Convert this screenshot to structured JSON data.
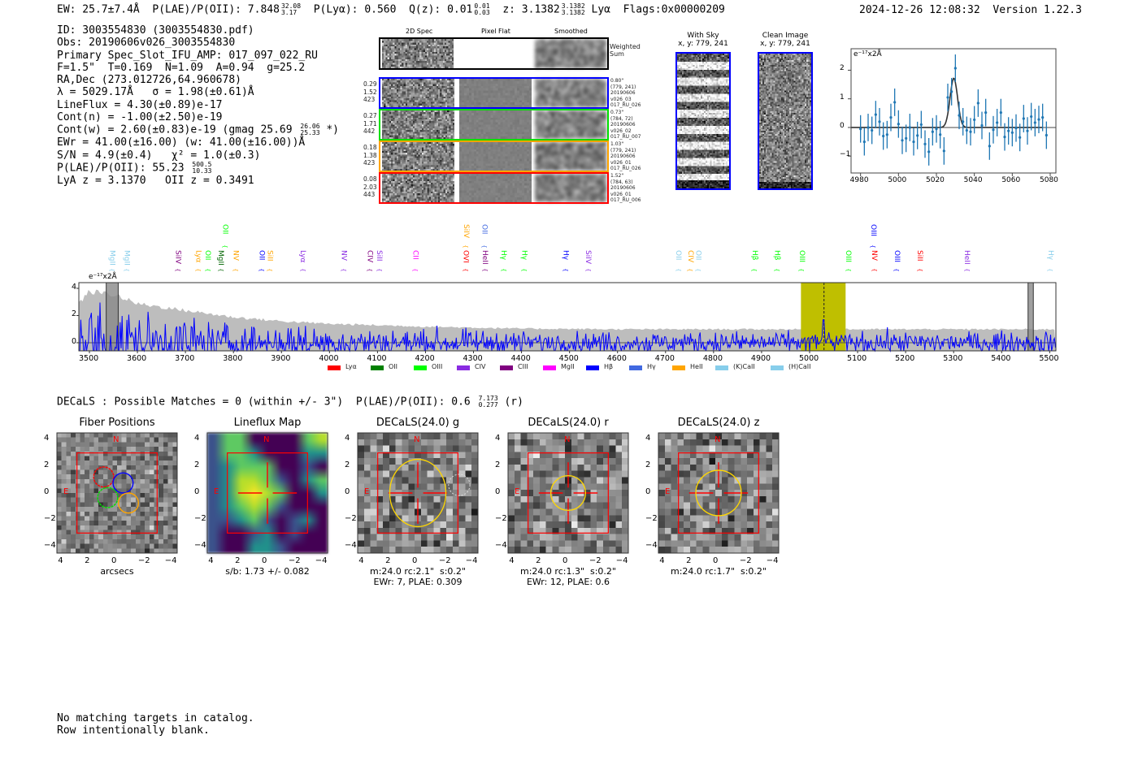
{
  "header": {
    "ew": "EW: 25.7±7.4Å",
    "plae_label": "P(LAE)/P(OII): 7.848",
    "plae_hi": "32.08",
    "plae_lo": "3.17",
    "plya": "P(Lyα): 0.560",
    "qz_label": "Q(z): 0.01",
    "qz_hi": "0.01",
    "qz_lo": "0.03",
    "z_label": "z: 3.1382",
    "z_hi": "3.1382",
    "z_lo": "3.1382",
    "line": "Lyα",
    "flags": "Flags:0x00000209",
    "timestamp": "2024-12-26 12:08:32",
    "version": "Version 1.22.3"
  },
  "info": {
    "id": "ID: 3003554830 (3003554830.pdf)",
    "obs": "Obs: 20190606v026_3003554830",
    "primary": "Primary Spec_Slot_IFU_AMP: 017_097_022_RU",
    "params": "F=1.5\"  T=0.169  N=1.09  A=0.94  g=25.2",
    "radec": "RA,Dec (273.012726,64.960678)",
    "lambda": "λ = 5029.17Å   σ = 1.98(±0.61)Å",
    "lineflux": "LineFlux = 4.30(±0.89)e-17",
    "cont_n": "Cont(n) = -1.00(±2.50)e-19",
    "cont_w": "Cont(w) = 2.60(±0.83)e-19 (gmag 25.69",
    "gmag_hi": "26.06",
    "gmag_lo": "25.33",
    "cont_w_end": " *)",
    "ewr": "EWr = 41.00(±16.00) (w: 41.00(±16.00))Å",
    "sn": "S/N = 4.9(±0.4)   χ² = 1.0(±0.3)",
    "plae": "P(LAE)/P(OII): 55.23",
    "plae_hi": "500.5",
    "plae_lo": "10.33",
    "z": "LyA z = 3.1370   OII z = 0.3491"
  },
  "spec2d": {
    "col_headers": [
      "2D Spec",
      "Pixel Flat",
      "Smoothed"
    ],
    "weighted_sum": "Weighted\nSum",
    "fibers": [
      {
        "left": "0.29\n1.52\n423",
        "right": "0.80\"\n(779, 241)\n20190606\nv026_03\n017_RU_026",
        "color": "#0000ff"
      },
      {
        "left": "0.27\n1.71\n442",
        "right": "0.73\"\n(784, 72)\n20190606\nv026_02\n017_RU_007",
        "color": "#00e000"
      },
      {
        "left": "0.18\n1.38\n423",
        "right": "1.03\"\n(779, 241)\n20190606\nv026_01\n017_RU_026",
        "color": "#ffa500"
      },
      {
        "left": "0.08\n2.03\n443",
        "right": "1.52\"\n(784, 63)\n20190606\nv026_01\n017_RU_006",
        "color": "#ff0000"
      }
    ]
  },
  "ccd": {
    "with_sky": "With Sky\nx, y: 779, 241",
    "clean": "Clean Image\nx, y: 779, 241"
  },
  "chart_data": [
    {
      "type": "scatter",
      "title": "emission line fit",
      "unit_label": "e⁻¹⁷x2Å",
      "xlim": [
        4975,
        5083
      ],
      "ylim": [
        -1.59,
        2.75
      ],
      "xticks": [
        "4980",
        "5000",
        "5020",
        "5040",
        "5060",
        "5080"
      ],
      "yticks": [
        "2",
        "1",
        "0",
        "−1"
      ],
      "x": [
        4980,
        4982,
        4984,
        4986,
        4988,
        4990,
        4992,
        4994,
        4996,
        4998,
        5000,
        5002,
        5004,
        5006,
        5008,
        5010,
        5012,
        5014,
        5016,
        5018,
        5020,
        5022,
        5024,
        5026,
        5028,
        5030,
        5032,
        5034,
        5036,
        5038,
        5040,
        5042,
        5044,
        5046,
        5048,
        5050,
        5052,
        5054,
        5056,
        5058,
        5060,
        5062,
        5064,
        5066,
        5068,
        5070,
        5072,
        5074,
        5076,
        5078
      ],
      "y": [
        -0.05,
        -0.5,
        0,
        -0.1,
        0.45,
        0.2,
        -0.3,
        -0.25,
        0.35,
        0.88,
        0.12,
        -0.45,
        -0.38,
        0,
        -0.5,
        -0.28,
        0.1,
        -0.58,
        -0.85,
        -0.15,
        -0.05,
        -0.25,
        -0.82,
        1.05,
        1.25,
        2.07,
        0.42,
        0.2,
        -0.1,
        -0.15,
        0.27,
        0.85,
        0.07,
        0.52,
        -0.65,
        -0.08,
        0.17,
        0.52,
        -0.33,
        -0.12,
        -0.18,
        -0.02,
        -0.35,
        0.31,
        -0.12,
        0.38,
        0.17,
        0.28,
        0.35,
        -0.27
      ],
      "yerr": 0.48,
      "fit": {
        "center": 5029.17,
        "sigma": 1.98,
        "amplitude": 1.72
      },
      "colors": {
        "points": "#1f77b4",
        "fit": "#333333"
      }
    },
    {
      "type": "line",
      "title": "full spectrum",
      "unit_label": "e⁻¹⁷x2Å",
      "xlim": [
        3478,
        5513
      ],
      "ylim": [
        -0.6,
        4.42
      ],
      "xticks": [
        "3500",
        "3600",
        "3700",
        "3800",
        "3900",
        "4000",
        "4100",
        "4200",
        "4300",
        "4400",
        "4500",
        "4600",
        "4700",
        "4800",
        "4900",
        "5000",
        "5100",
        "5200",
        "5300",
        "5400",
        "5500"
      ],
      "yticks": [
        "4",
        "2",
        "0"
      ],
      "error_envelope": [
        [
          3480,
          3.0
        ],
        [
          3500,
          3.8
        ],
        [
          3550,
          3.6
        ],
        [
          3600,
          2.9
        ],
        [
          3700,
          2.4
        ],
        [
          3800,
          1.9
        ],
        [
          3900,
          1.6
        ],
        [
          4000,
          1.4
        ],
        [
          4200,
          1.2
        ],
        [
          4400,
          1.05
        ],
        [
          4600,
          1.0
        ],
        [
          4800,
          1.0
        ],
        [
          5000,
          1.0
        ],
        [
          5500,
          1.0
        ]
      ],
      "emission_peak": {
        "x": 5029,
        "y": 2.1
      },
      "highlight_band": [
        4982,
        5075
      ],
      "marker": 5030,
      "masked": [
        [
          3535,
          3560
        ],
        [
          5455,
          5466
        ]
      ],
      "series_color": "#0000ff",
      "line_labels": [
        {
          "t": "MgII",
          "x": 3546,
          "c": "#87ceeb",
          "r": 0
        },
        {
          "t": "MgII",
          "x": 3576,
          "c": "#87ceeb",
          "r": 0
        },
        {
          "t": "SiIV",
          "x": 3683,
          "c": "#800080",
          "r": 0
        },
        {
          "t": "Lyα",
          "x": 3725,
          "c": "#ffa500",
          "r": 0
        },
        {
          "t": "OII",
          "x": 3745,
          "c": "#00ff00",
          "r": 0
        },
        {
          "t": "MgII",
          "x": 3772,
          "c": "#006400",
          "r": 0
        },
        {
          "t": "OII",
          "x": 3781,
          "c": "#00ff00",
          "r": 1
        },
        {
          "t": "NV",
          "x": 3803,
          "c": "#ffa500",
          "r": 0
        },
        {
          "t": "OII",
          "x": 3857,
          "c": "#0000ff",
          "r": 0
        },
        {
          "t": "SiII",
          "x": 3874,
          "c": "#ffa500",
          "r": 0
        },
        {
          "t": "Lyα",
          "x": 3943,
          "c": "#8a2be2",
          "r": 0
        },
        {
          "t": "NV",
          "x": 4028,
          "c": "#8a2be2",
          "r": 0
        },
        {
          "t": "CIV",
          "x": 4082,
          "c": "#800080",
          "r": 0
        },
        {
          "t": "SiII",
          "x": 4102,
          "c": "#8a2be2",
          "r": 0
        },
        {
          "t": "CII",
          "x": 4177,
          "c": "#ff00ff",
          "r": 0
        },
        {
          "t": "OVI",
          "x": 4282,
          "c": "#ff0000",
          "r": 0
        },
        {
          "t": "SiIV",
          "x": 4283,
          "c": "#ffa500",
          "r": 1
        },
        {
          "t": "HeII",
          "x": 4322,
          "c": "#800080",
          "r": 0
        },
        {
          "t": "OII",
          "x": 4321,
          "c": "#4169e1",
          "r": 1
        },
        {
          "t": "Hγ",
          "x": 4361,
          "c": "#00ff00",
          "r": 0
        },
        {
          "t": "Hγ",
          "x": 4404,
          "c": "#00ff00",
          "r": 0
        },
        {
          "t": "Hγ",
          "x": 4490,
          "c": "#0000ff",
          "r": 0
        },
        {
          "t": "SiIV",
          "x": 4537,
          "c": "#8a2be2",
          "r": 0
        },
        {
          "t": "OII",
          "x": 4725,
          "c": "#87ceeb",
          "r": 0
        },
        {
          "t": "CIV",
          "x": 4750,
          "c": "#ffa500",
          "r": 0
        },
        {
          "t": "OII",
          "x": 4766,
          "c": "#87ceeb",
          "r": 0
        },
        {
          "t": "Hβ",
          "x": 4884,
          "c": "#00ff00",
          "r": 0
        },
        {
          "t": "Hβ",
          "x": 4931,
          "c": "#00ff00",
          "r": 0
        },
        {
          "t": "OIII",
          "x": 4982,
          "c": "#00ff00",
          "r": 0
        },
        {
          "t": "OIII",
          "x": 5079,
          "c": "#00ff00",
          "r": 0
        },
        {
          "t": "NV",
          "x": 5133,
          "c": "#ff0000",
          "r": 0
        },
        {
          "t": "OIII",
          "x": 5131,
          "c": "#0000ff",
          "r": 1
        },
        {
          "t": "OIII",
          "x": 5180,
          "c": "#0000ff",
          "r": 0
        },
        {
          "t": "SiII",
          "x": 5228,
          "c": "#ff0000",
          "r": 0
        },
        {
          "t": "HeII",
          "x": 5326,
          "c": "#8a2be2",
          "r": 0
        },
        {
          "t": "Hγ",
          "x": 5500,
          "c": "#87ceeb",
          "r": 0
        }
      ],
      "legend": [
        {
          "name": "Lyα",
          "color": "#ff0000"
        },
        {
          "name": "OII",
          "color": "#008000"
        },
        {
          "name": "OIII",
          "color": "#00ff00"
        },
        {
          "name": "CIV",
          "color": "#8a2be2"
        },
        {
          "name": "CIII",
          "color": "#800080"
        },
        {
          "name": "MgII",
          "color": "#ff00ff"
        },
        {
          "name": "Hβ",
          "color": "#0000ff"
        },
        {
          "name": "Hγ",
          "color": "#4169e1"
        },
        {
          "name": "HeII",
          "color": "#ffa500"
        },
        {
          "name": "(K)CaII",
          "color": "#87ceeb"
        },
        {
          "name": "(H)CaII",
          "color": "#87ceeb"
        }
      ],
      "legend_placement": "bottom"
    }
  ],
  "decals": {
    "summary": "DECaLS : Possible Matches = 0 (within +/- 3\")  P(LAE)/P(OII): 0.6",
    "plae_hi": "7.173",
    "plae_lo": "0.277",
    "band": " (r)",
    "axis_ticks": [
      "4",
      "2",
      "0",
      "−2",
      "−4"
    ],
    "x_ticks": [
      "−4",
      "−2",
      "0",
      "2",
      "4"
    ],
    "compass_n": "N",
    "compass_e": "E",
    "panels": [
      {
        "title": "Fiber Positions",
        "caption": "arcsecs"
      },
      {
        "title": "Lineflux Map",
        "caption": "s/b: 1.73 +/- 0.082"
      },
      {
        "title": "DECaLS(24.0) g",
        "caption": "m:24.0 rc:2.1\"  s:0.2\"\nEWr: 7, PLAE: 0.309",
        "aperture_radius": 2.1
      },
      {
        "title": "DECaLS(24.0) r",
        "caption": "m:24.0 rc:1.3\"  s:0.2\"\nEWr: 12, PLAE: 0.6",
        "aperture_radius": 1.3
      },
      {
        "title": "DECaLS(24.0) z",
        "caption": "m:24.0 rc:1.7\"  s:0.2\"",
        "aperture_radius": 1.7
      }
    ]
  },
  "catalog": {
    "line1": "No matching targets in catalog.",
    "line2": "Row intentionally blank."
  }
}
